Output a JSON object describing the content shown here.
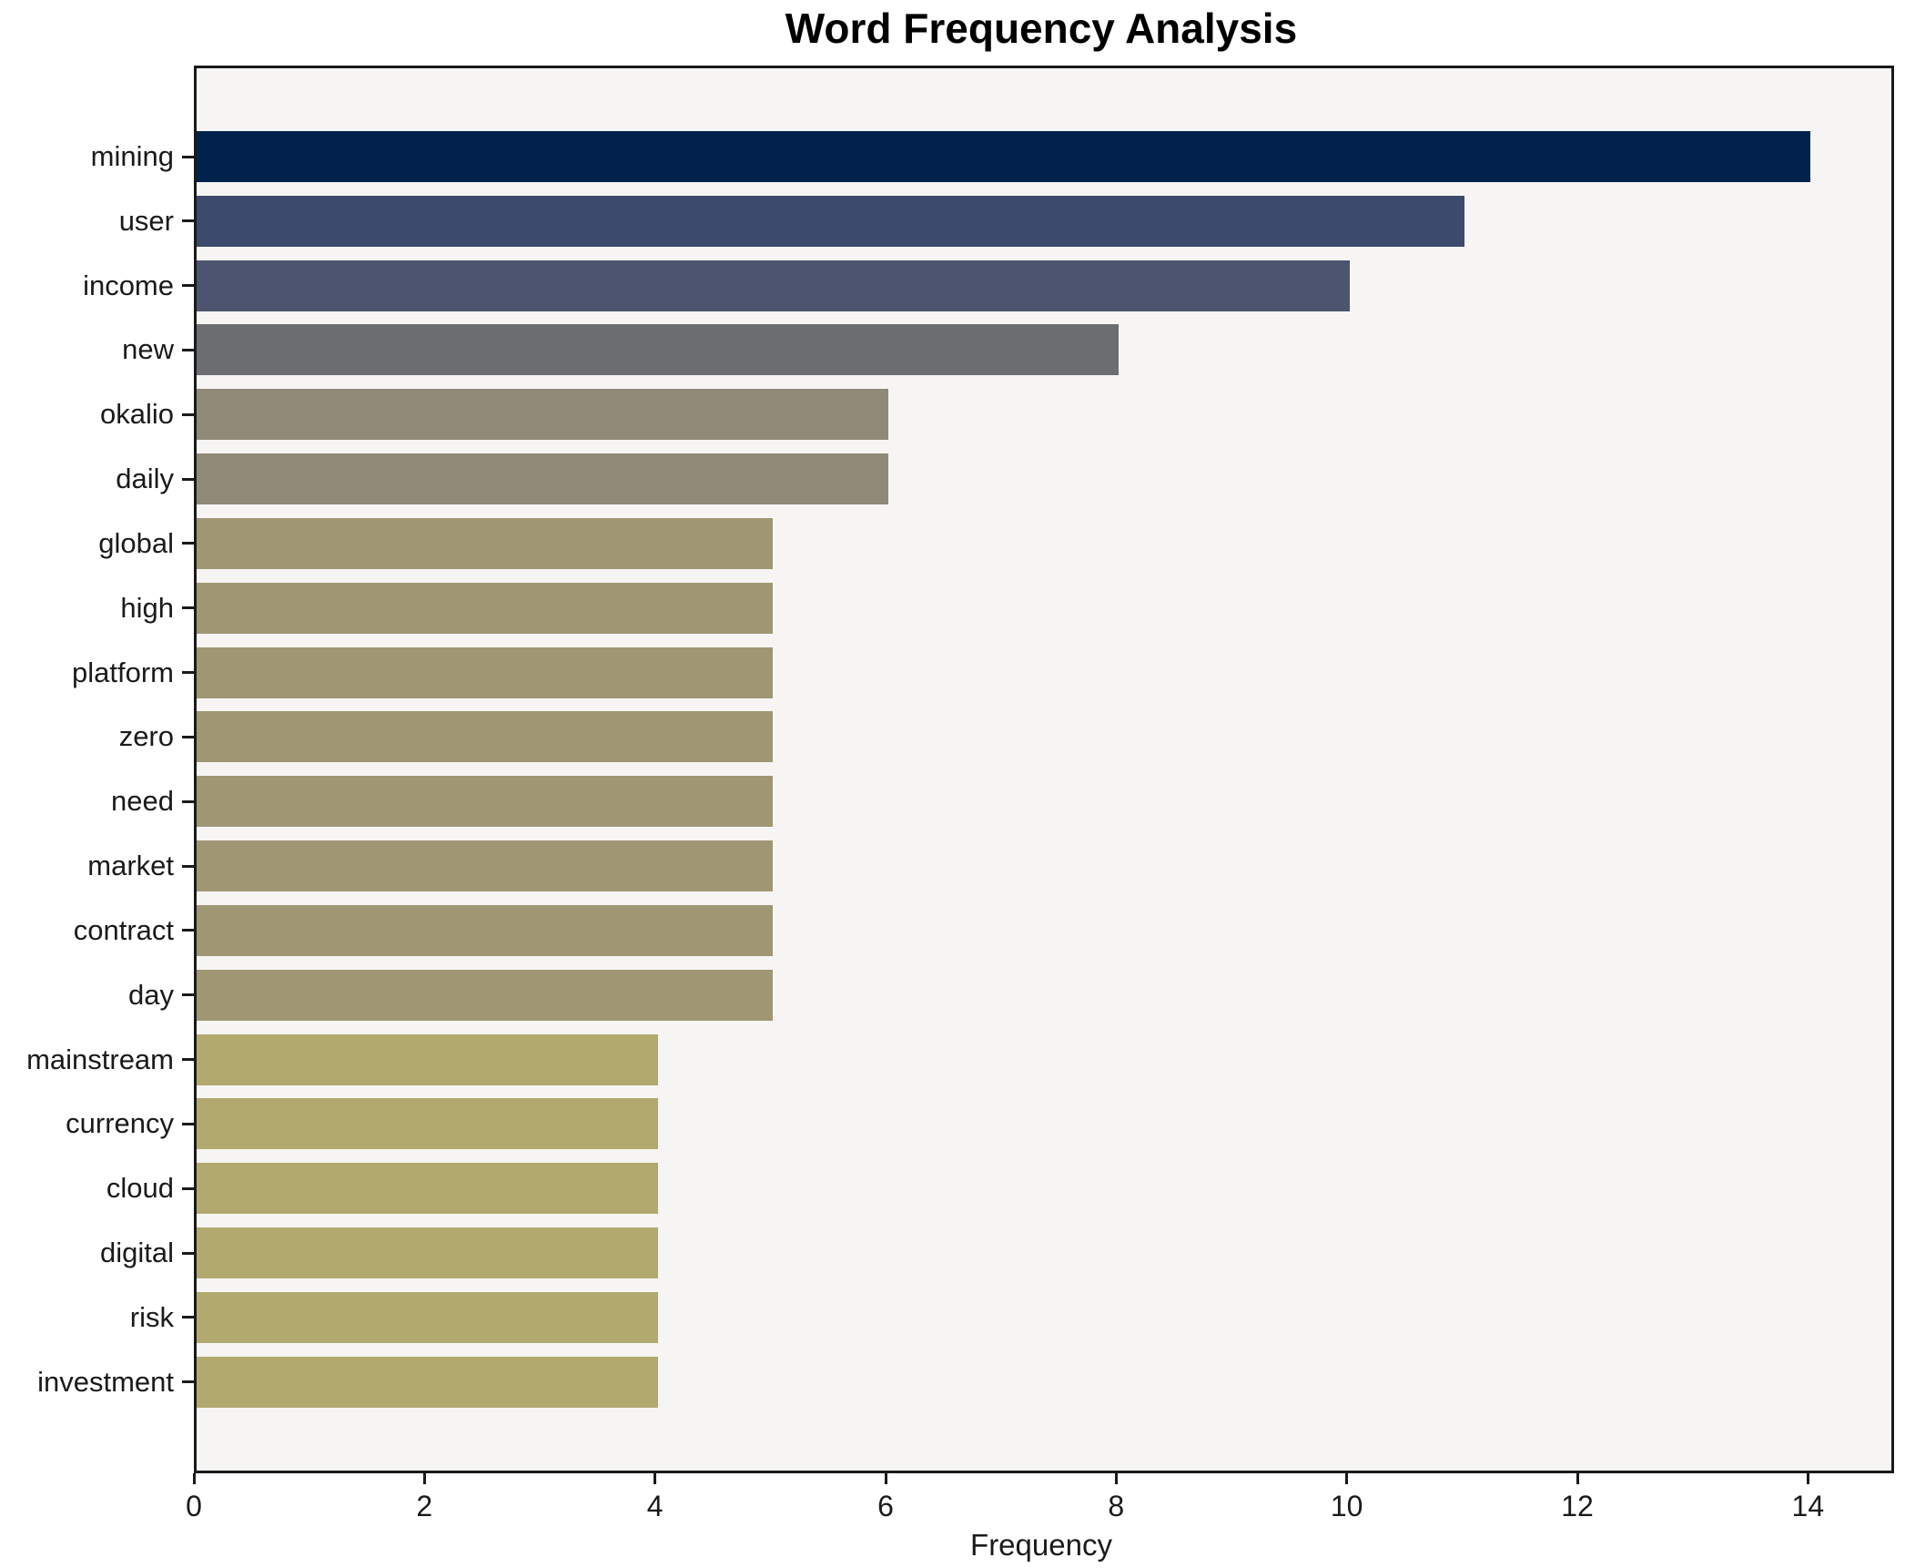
{
  "title": "Word Frequency Analysis",
  "chart_data": {
    "type": "bar",
    "orientation": "horizontal",
    "title": "Word Frequency Analysis",
    "xlabel": "Frequency",
    "ylabel": "",
    "categories": [
      "mining",
      "user",
      "income",
      "new",
      "okalio",
      "daily",
      "global",
      "high",
      "platform",
      "zero",
      "need",
      "market",
      "contract",
      "day",
      "mainstream",
      "currency",
      "cloud",
      "digital",
      "risk",
      "investment"
    ],
    "values": [
      14,
      11,
      10,
      8,
      6,
      6,
      5,
      5,
      5,
      5,
      5,
      5,
      5,
      5,
      4,
      4,
      4,
      4,
      4,
      4
    ],
    "bar_colors": [
      "#02224e",
      "#3c4a6b",
      "#4c5470",
      "#6b6d71",
      "#8f8977",
      "#8f8977",
      "#9f9674",
      "#9f9674",
      "#9f9674",
      "#9f9674",
      "#9f9674",
      "#9f9674",
      "#9f9674",
      "#9f9674",
      "#b2a96e",
      "#b2a96e",
      "#b2a96e",
      "#b2a96e",
      "#b2a96e",
      "#b2a96e"
    ],
    "xlim": [
      0,
      14.7
    ],
    "x_ticks": [
      0,
      2,
      4,
      6,
      8,
      10,
      12,
      14
    ],
    "grid": false,
    "legend": null,
    "plot_bg": "#f6f5f3",
    "fig_bg": "#ffffff",
    "spine_color": "#1a1a1a"
  }
}
